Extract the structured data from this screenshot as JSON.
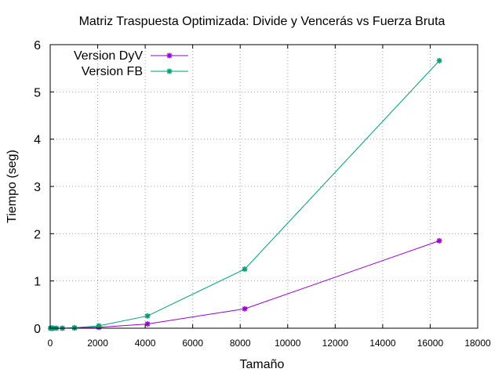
{
  "chart_data": {
    "type": "line",
    "title": "Matriz Traspuesta Optimizada: Divide y Vencerás vs Fuerza Bruta",
    "xlabel": "Tamaño",
    "ylabel": "Tiempo (seg)",
    "xlim": [
      0,
      18000
    ],
    "ylim": [
      0,
      6
    ],
    "xticks": [
      0,
      2000,
      4000,
      6000,
      8000,
      10000,
      12000,
      14000,
      16000,
      18000
    ],
    "yticks": [
      0,
      1,
      2,
      3,
      4,
      5,
      6
    ],
    "grid": true,
    "legend_position": "top-left",
    "x": [
      16,
      32,
      64,
      128,
      256,
      512,
      1024,
      2048,
      4096,
      8192,
      16384
    ],
    "series": [
      {
        "name": "Version DyV",
        "color": "#9400d3",
        "marker": "asterisk",
        "values": [
          0.0,
          0.0,
          0.0,
          0.0,
          0.0,
          0.0,
          0.005,
          0.02,
          0.09,
          0.41,
          1.85
        ]
      },
      {
        "name": "Version FB",
        "color": "#009e73",
        "marker": "asterisk",
        "values": [
          0.0,
          0.0,
          0.0,
          0.0,
          0.0,
          0.0,
          0.01,
          0.05,
          0.26,
          1.25,
          5.66
        ]
      }
    ]
  }
}
